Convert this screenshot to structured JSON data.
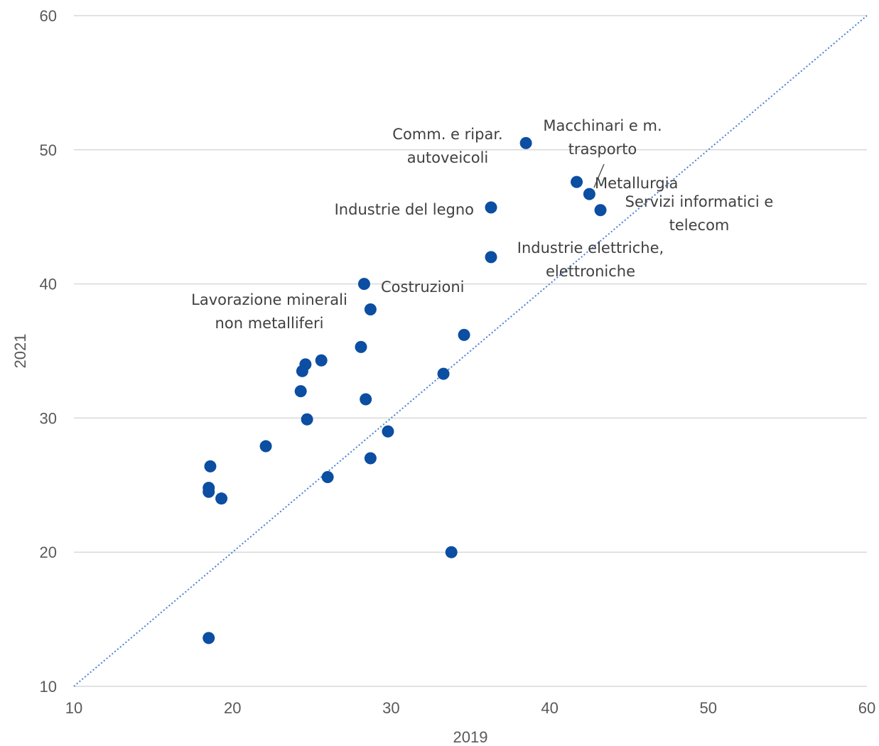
{
  "chart_data": {
    "type": "scatter",
    "xlabel": "2019",
    "ylabel": "2021",
    "xlim": [
      10,
      60
    ],
    "ylim": [
      10,
      60
    ],
    "x_ticks": [
      "10",
      "20",
      "30",
      "40",
      "50",
      "60"
    ],
    "y_ticks": [
      "10",
      "20",
      "30",
      "40",
      "50",
      "60"
    ],
    "grid": "horizontal",
    "reference_line": "y = x (dotted)",
    "point_color": "#0b4ea2",
    "line_color": "#4a7fd4",
    "points": [
      {
        "x": 38.5,
        "y": 50.5
      },
      {
        "x": 41.7,
        "y": 47.6
      },
      {
        "x": 42.5,
        "y": 46.7
      },
      {
        "x": 43.2,
        "y": 45.5
      },
      {
        "x": 36.3,
        "y": 45.7
      },
      {
        "x": 36.3,
        "y": 42.0
      },
      {
        "x": 28.3,
        "y": 40.0
      },
      {
        "x": 28.7,
        "y": 38.1
      },
      {
        "x": 34.6,
        "y": 36.2
      },
      {
        "x": 28.1,
        "y": 35.3
      },
      {
        "x": 25.6,
        "y": 34.3
      },
      {
        "x": 24.6,
        "y": 34.0
      },
      {
        "x": 24.4,
        "y": 33.5
      },
      {
        "x": 33.3,
        "y": 33.3
      },
      {
        "x": 24.3,
        "y": 32.0
      },
      {
        "x": 28.4,
        "y": 31.4
      },
      {
        "x": 24.7,
        "y": 29.9
      },
      {
        "x": 29.8,
        "y": 29.0
      },
      {
        "x": 22.1,
        "y": 27.9
      },
      {
        "x": 28.7,
        "y": 27.0
      },
      {
        "x": 18.6,
        "y": 26.4
      },
      {
        "x": 26.0,
        "y": 25.6
      },
      {
        "x": 18.5,
        "y": 24.8
      },
      {
        "x": 18.5,
        "y": 24.5
      },
      {
        "x": 19.3,
        "y": 24.0
      },
      {
        "x": 33.8,
        "y": 20.0
      },
      {
        "x": 18.5,
        "y": 13.6
      }
    ],
    "annotations": [
      {
        "lines": [
          "Comm. e ripar.",
          "autoveicoli"
        ]
      },
      {
        "lines": [
          "Macchinari e m.",
          "trasporto"
        ]
      },
      {
        "lines": [
          "Metallurgia"
        ]
      },
      {
        "lines": [
          "Servizi informatici e",
          "telecom"
        ]
      },
      {
        "lines": [
          "Industrie del legno"
        ]
      },
      {
        "lines": [
          "Industrie elettriche,",
          "elettroniche"
        ]
      },
      {
        "lines": [
          "Costruzioni"
        ]
      },
      {
        "lines": [
          "Lavorazione minerali",
          "non metalliferi"
        ]
      }
    ]
  }
}
